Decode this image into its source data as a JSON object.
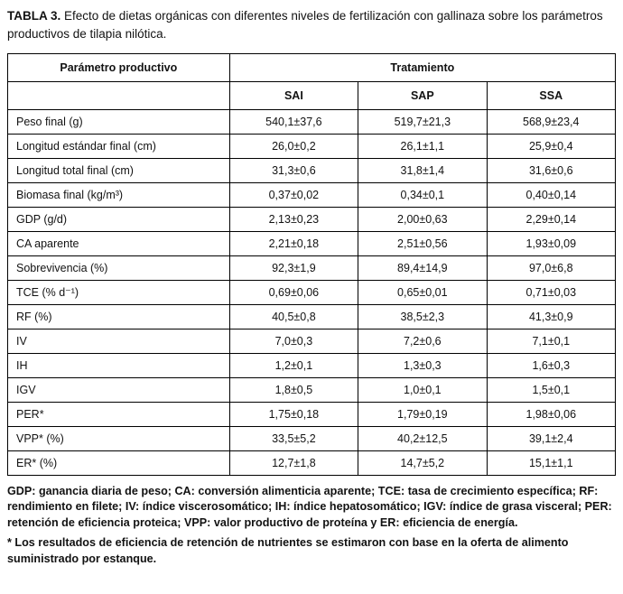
{
  "title": {
    "label": "TABLA 3.",
    "text": "Efecto de dietas orgánicas con diferentes niveles de fertilización con gallinaza sobre los parámetros productivos de tilapia nilótica."
  },
  "table": {
    "param_header": "Parámetro productivo",
    "treatment_header": "Tratamiento",
    "columns": [
      "SAI",
      "SAP",
      "SSA"
    ],
    "rows": [
      {
        "param": "Peso final (g)",
        "sai": "540,1±37,6",
        "sap": "519,7±21,3",
        "ssa": "568,9±23,4"
      },
      {
        "param": "Longitud estándar final (cm)",
        "sai": "26,0±0,2",
        "sap": "26,1±1,1",
        "ssa": "25,9±0,4"
      },
      {
        "param": "Longitud total final (cm)",
        "sai": "31,3±0,6",
        "sap": "31,8±1,4",
        "ssa": "31,6±0,6"
      },
      {
        "param": "Biomasa final (kg/m³)",
        "sai": "0,37±0,02",
        "sap": "0,34±0,1",
        "ssa": "0,40±0,14"
      },
      {
        "param": "GDP (g/d)",
        "sai": "2,13±0,23",
        "sap": "2,00±0,63",
        "ssa": "2,29±0,14"
      },
      {
        "param": "CA aparente",
        "sai": "2,21±0,18",
        "sap": "2,51±0,56",
        "ssa": "1,93±0,09"
      },
      {
        "param": "Sobrevivencia (%)",
        "sai": "92,3±1,9",
        "sap": "89,4±14,9",
        "ssa": "97,0±6,8"
      },
      {
        "param": "TCE (% d⁻¹)",
        "sai": "0,69±0,06",
        "sap": "0,65±0,01",
        "ssa": "0,71±0,03"
      },
      {
        "param": "RF (%)",
        "sai": "40,5±0,8",
        "sap": "38,5±2,3",
        "ssa": "41,3±0,9"
      },
      {
        "param": "IV",
        "sai": "7,0±0,3",
        "sap": "7,2±0,6",
        "ssa": "7,1±0,1"
      },
      {
        "param": "IH",
        "sai": "1,2±0,1",
        "sap": "1,3±0,3",
        "ssa": "1,6±0,3"
      },
      {
        "param": "IGV",
        "sai": "1,8±0,5",
        "sap": "1,0±0,1",
        "ssa": "1,5±0,1"
      },
      {
        "param": "PER*",
        "sai": "1,75±0,18",
        "sap": "1,79±0,19",
        "ssa": "1,98±0,06"
      },
      {
        "param": "VPP* (%)",
        "sai": "33,5±5,2",
        "sap": "40,2±12,5",
        "ssa": "39,1±2,4"
      },
      {
        "param": "ER* (%)",
        "sai": "12,7±1,8",
        "sap": "14,7±5,2",
        "ssa": "15,1±1,1"
      }
    ]
  },
  "footnotes": {
    "abbreviations": "GDP: ganancia diaria de peso; CA: conversión alimenticia aparente; TCE: tasa de crecimiento específica; RF: rendimiento en filete; IV: índice viscerosomático; IH: índice hepatosomático; IGV: índice de grasa visceral; PER: retención de eficiencia proteica; VPP: valor productivo de proteína y ER: eficiencia de energía.",
    "asterisk": "* Los resultados de eficiencia de retención de nutrientes se estimaron con base en la oferta de alimento suministrado por estanque."
  }
}
